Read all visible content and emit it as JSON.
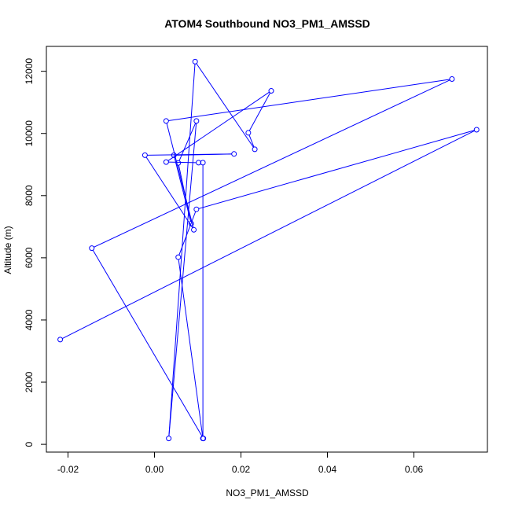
{
  "chart_data": {
    "type": "line",
    "title": "ATOM4 Southbound NO3_PM1_AMSSD",
    "xlabel": "NO3_PM1_AMSSD",
    "ylabel": "Altitude (m)",
    "xlim": [
      -0.025,
      0.077
    ],
    "ylim": [
      -250,
      12800
    ],
    "xticks": [
      -0.02,
      0.0,
      0.02,
      0.04,
      0.06
    ],
    "xtick_labels": [
      "-0.02",
      "0.00",
      "0.02",
      "0.04",
      "0.06"
    ],
    "yticks": [
      0,
      2000,
      4000,
      6000,
      8000,
      10000,
      12000
    ],
    "ytick_labels": [
      "0",
      "2000",
      "4000",
      "6000",
      "8000",
      "10000",
      "12000"
    ],
    "grid": false,
    "series": [
      {
        "color": "#0000ff",
        "marker": "open-circle",
        "points": [
          {
            "x": 0.0113,
            "y": 190
          },
          {
            "x": -0.0145,
            "y": 6310
          },
          {
            "x": 0.0688,
            "y": 11750
          },
          {
            "x": 0.0027,
            "y": 10400
          },
          {
            "x": 0.0091,
            "y": 6900
          },
          {
            "x": -0.0022,
            "y": 9300
          },
          {
            "x": 0.0184,
            "y": 9340
          },
          {
            "x": 0.0045,
            "y": 9300
          },
          {
            "x": 0.0085,
            "y": 7100
          },
          {
            "x": 0.0055,
            "y": 9050
          },
          {
            "x": 0.0097,
            "y": 10400
          },
          {
            "x": 0.0033,
            "y": 190
          },
          {
            "x": 0.0094,
            "y": 12310
          },
          {
            "x": 0.0232,
            "y": 9490
          },
          {
            "x": 0.0217,
            "y": 10020
          },
          {
            "x": 0.027,
            "y": 11370
          },
          {
            "x": 0.0027,
            "y": 9080
          },
          {
            "x": 0.0102,
            "y": 9060
          },
          {
            "x": 0.0112,
            "y": 9060
          },
          {
            "x": 0.0112,
            "y": 190
          },
          {
            "x": 0.0055,
            "y": 6020
          },
          {
            "x": 0.0097,
            "y": 7560
          },
          {
            "x": 0.0745,
            "y": 10120
          },
          {
            "x": -0.0218,
            "y": 3370
          }
        ]
      }
    ]
  }
}
